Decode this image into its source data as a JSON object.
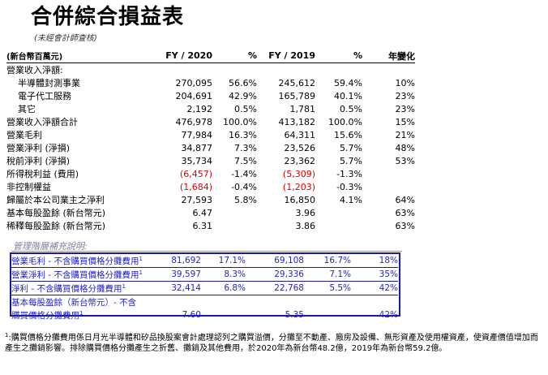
{
  "title": "合併綜合損益表",
  "subtitle": "(未經會計師查核)",
  "header": {
    "unit": "(新台幣百萬元)",
    "fy2020": "FY / 2020",
    "pct1": "%",
    "fy2019": "FY / 2019",
    "pct2": "%",
    "change": "年變化"
  },
  "rows": [
    {
      "label": "營業收入淨額:",
      "a": "",
      "ap": "",
      "b": "",
      "bp": "",
      "chg": ""
    },
    {
      "label": "半導體封測事業",
      "a": "270,095",
      "ap": "56.6%",
      "b": "245,612",
      "bp": "59.4%",
      "chg": "10%"
    },
    {
      "label": "電子代工服務",
      "a": "204,691",
      "ap": "42.9%",
      "b": "165,789",
      "bp": "40.1%",
      "chg": "23%"
    },
    {
      "label": "其它",
      "a": "2,192",
      "ap": "0.5%",
      "b": "1,781",
      "bp": "0.5%",
      "chg": "23%"
    },
    {
      "label": "營業收入淨額合計",
      "a": "476,978",
      "ap": "100.0%",
      "b": "413,182",
      "bp": "100.0%",
      "chg": "15%"
    },
    {
      "label": "營業毛利",
      "a": "77,984",
      "ap": "16.3%",
      "b": "64,311",
      "bp": "15.6%",
      "chg": "21%"
    },
    {
      "label": "營業淨利 (淨損)",
      "a": "34,877",
      "ap": "7.3%",
      "b": "23,526",
      "bp": "5.7%",
      "chg": "48%"
    },
    {
      "label": "稅前淨利 (淨損)",
      "a": "35,734",
      "ap": "7.5%",
      "b": "23,362",
      "bp": "5.7%",
      "chg": "53%"
    },
    {
      "label": "所得稅利益 (費用)",
      "a": "(6,457)",
      "ap": "-1.4%",
      "b": "(5,309)",
      "bp": "-1.3%",
      "chg": ""
    },
    {
      "label": "非控制權益",
      "a": "(1,684)",
      "ap": "-0.4%",
      "b": "(1,203)",
      "bp": "-0.3%",
      "chg": ""
    },
    {
      "label": "歸屬於本公司業主之淨利",
      "a": "27,593",
      "ap": "5.8%",
      "b": "16,850",
      "bp": "4.1%",
      "chg": "64%"
    },
    {
      "label": "基本每股盈餘 (新台幣元)",
      "a": "6.47",
      "ap": "",
      "b": "3.96",
      "bp": "",
      "chg": "63%"
    },
    {
      "label": "稀釋每股盈餘 (新台幣元)",
      "a": "6.31",
      "ap": "",
      "b": "3.86",
      "bp": "",
      "chg": "63%"
    }
  ],
  "section_title": "管理階層補充說明:",
  "supplement": [
    {
      "label": "營業毛利 - 不含購買價格分攤費用",
      "a": "81,692",
      "ap": "17.1%",
      "b": "69,108",
      "bp": "16.7%",
      "chg": "18%"
    },
    {
      "label": "營業淨利 - 不含購買價格分攤費用",
      "a": "39,597",
      "ap": "8.3%",
      "b": "29,336",
      "bp": "7.1%",
      "chg": "35%"
    },
    {
      "label": "淨利 - 不含購買價格分攤費用",
      "a": "32,414",
      "ap": "6.8%",
      "b": "22,768",
      "bp": "5.5%",
      "chg": "42%"
    }
  ],
  "supplement_eps": {
    "label1": "基本每股盈餘（新台幣元）- 不含",
    "label2": "購買價格分攤費用",
    "a": "7.60",
    "b": "5.35",
    "chg": "42%"
  },
  "footnote_mark": "1",
  "footnote": ":購買價格分攤費用係日月光半導體和矽品換股案會計處理認列之購買溢價，分攤至不動產、廠房及設備、無形資產及使用權資產，使資產價值增加而產生之攤銷影響。排除購買價格分攤產生之折舊、攤銷及其他費用，於2020年為新台幣48.2億，2019年為新台幣59.2億。",
  "colors": {
    "negative": "#e00000",
    "supplement_text": "#1f1fd0",
    "supplement_border": "#1a1aa0",
    "section_title": "#7f7f9f"
  }
}
